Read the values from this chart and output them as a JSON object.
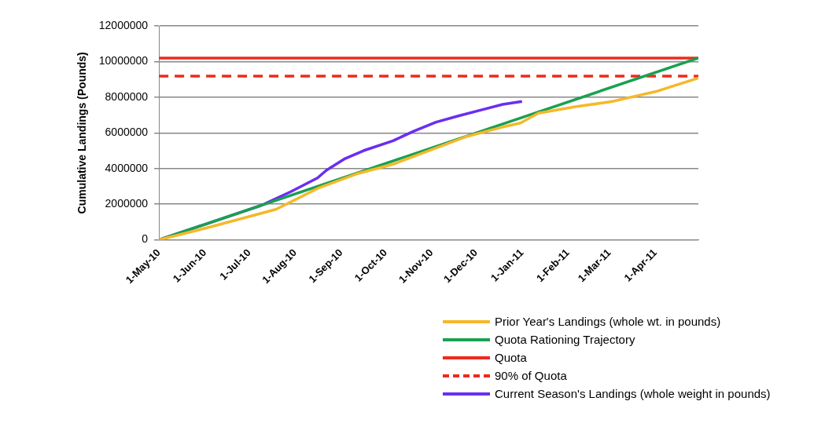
{
  "chart_data": {
    "type": "line",
    "ylabel": "Cumulative Landings (Pounds)",
    "xlim": [
      "2010-05-01",
      "2011-04-30"
    ],
    "xticks": [
      {
        "value": "2010-05-01",
        "label": "1-May-10"
      },
      {
        "value": "2010-06-01",
        "label": "1-Jun-10"
      },
      {
        "value": "2010-07-01",
        "label": "1-Jul-10"
      },
      {
        "value": "2010-08-01",
        "label": "1-Aug-10"
      },
      {
        "value": "2010-09-01",
        "label": "1-Sep-10"
      },
      {
        "value": "2010-10-01",
        "label": "1-Oct-10"
      },
      {
        "value": "2010-11-01",
        "label": "1-Nov-10"
      },
      {
        "value": "2010-12-01",
        "label": "1-Dec-10"
      },
      {
        "value": "2011-01-01",
        "label": "1-Jan-11"
      },
      {
        "value": "2011-02-01",
        "label": "1-Feb-11"
      },
      {
        "value": "2011-03-01",
        "label": "1-Mar-11"
      },
      {
        "value": "2011-04-01",
        "label": "1-Apr-11"
      }
    ],
    "ylim": [
      0,
      12000000
    ],
    "yticks": [
      0,
      2000000,
      4000000,
      6000000,
      8000000,
      10000000,
      12000000
    ],
    "grid": "y",
    "legend": "bottom",
    "marker": "none",
    "series": [
      {
        "name": "Prior Year's Landings (whole wt. in pounds)",
        "color": "#f5b82a",
        "x": [
          "2010-05-01",
          "2010-06-05",
          "2010-07-19",
          "2010-08-17",
          "2010-09-11",
          "2010-10-06",
          "2010-10-30",
          "2010-11-24",
          "2010-12-19",
          "2010-12-31",
          "2011-01-12",
          "2011-02-06",
          "2011-03-03",
          "2011-03-20",
          "2011-04-01",
          "2011-04-30"
        ],
        "values": [
          0,
          730000,
          1710000,
          2920000,
          3690000,
          4240000,
          5000000,
          5780000,
          6330000,
          6550000,
          7100000,
          7470000,
          7760000,
          8090000,
          8310000,
          9080000
        ]
      },
      {
        "name": "Quota Rationing Trajectory",
        "color": "#1aa050",
        "x": [
          "2010-05-01",
          "2011-04-30"
        ],
        "values": [
          0,
          10200000
        ]
      },
      {
        "name": "Quota",
        "color": "#ee2a1c",
        "x": [
          "2010-05-01",
          "2011-04-30"
        ],
        "values": [
          10200000,
          10200000
        ]
      },
      {
        "name": "90% of Quota",
        "color": "#ee2a1c",
        "line_style": "dashed",
        "x": [
          "2010-05-01",
          "2011-04-30"
        ],
        "values": [
          9180000,
          9180000
        ]
      },
      {
        "name": "Current Season's Landings (whole weight in pounds)",
        "color": "#6a2ef0",
        "x": [
          "2010-05-01",
          "2010-05-31",
          "2010-07-09",
          "2010-07-29",
          "2010-08-16",
          "2010-08-22",
          "2010-09-03",
          "2010-09-16",
          "2010-10-06",
          "2010-10-20",
          "2010-11-04",
          "2010-11-19",
          "2010-12-06",
          "2010-12-19",
          "2011-01-01"
        ],
        "values": [
          0,
          840000,
          1930000,
          2700000,
          3470000,
          3900000,
          4530000,
          5000000,
          5560000,
          6100000,
          6600000,
          6950000,
          7320000,
          7600000,
          7760000
        ]
      }
    ]
  }
}
